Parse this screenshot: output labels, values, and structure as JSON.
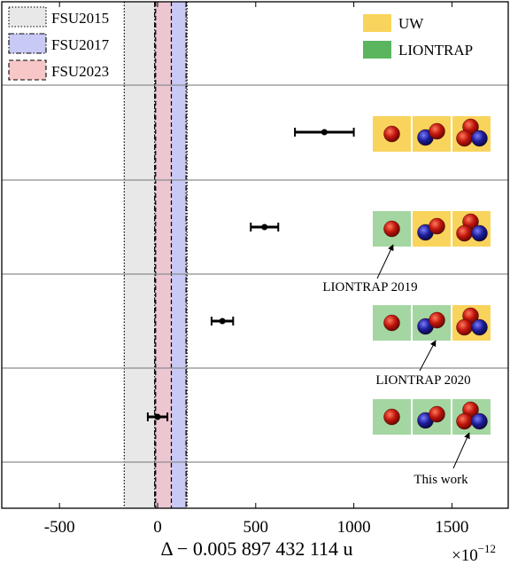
{
  "chart_data": {
    "type": "scatter",
    "xlabel": "Δ − 0.005 897 432 114 u",
    "x_scale_label": "×10",
    "x_scale_exponent": "−12",
    "xlim": [
      -800,
      1800
    ],
    "xticks": [
      -500,
      0,
      500,
      1000,
      1500
    ],
    "xtick_labels": [
      "-500",
      "0",
      "500",
      "1000",
      "1500"
    ],
    "grid": "horizontal separators",
    "bands": [
      {
        "name": "FSU2015",
        "center": -10,
        "half_width": 160,
        "fill": "#e8e8e8",
        "line_style": "dotted"
      },
      {
        "name": "FSU2017",
        "center": 65,
        "half_width": 80,
        "fill": "#c9c9f5",
        "line_style": "dashdot"
      },
      {
        "name": "FSU2023",
        "center": 30,
        "half_width": 40,
        "fill": "#f7c6c6",
        "line_style": "dashed"
      }
    ],
    "points": [
      {
        "row": 1,
        "x": 850,
        "xerr": 150
      },
      {
        "row": 2,
        "x": 545,
        "xerr": 70
      },
      {
        "row": 3,
        "x": 330,
        "xerr": 55
      },
      {
        "row": 4,
        "x": 0,
        "xerr": 50
      }
    ],
    "row_species": [
      [
        "UW",
        "UW",
        "UW"
      ],
      [
        "LIONTRAP",
        "UW",
        "UW"
      ],
      [
        "LIONTRAP",
        "LIONTRAP",
        "UW"
      ],
      [
        "LIONTRAP",
        "LIONTRAP",
        "LIONTRAP"
      ]
    ],
    "legend_right": [
      {
        "label": "UW",
        "color": "#f9d45c"
      },
      {
        "label": "LIONTRAP",
        "color": "#5ab55e"
      }
    ],
    "legend_left_placement": "top-left",
    "legend_right_placement": "top-right",
    "annotations": [
      {
        "text": "LIONTRAP 2019",
        "row": 2
      },
      {
        "text": "LIONTRAP 2020",
        "row": 3
      },
      {
        "text": "This work",
        "row": 4
      }
    ],
    "colors": {
      "proton": "#c0150c",
      "neutron": "#1c1c96"
    }
  }
}
